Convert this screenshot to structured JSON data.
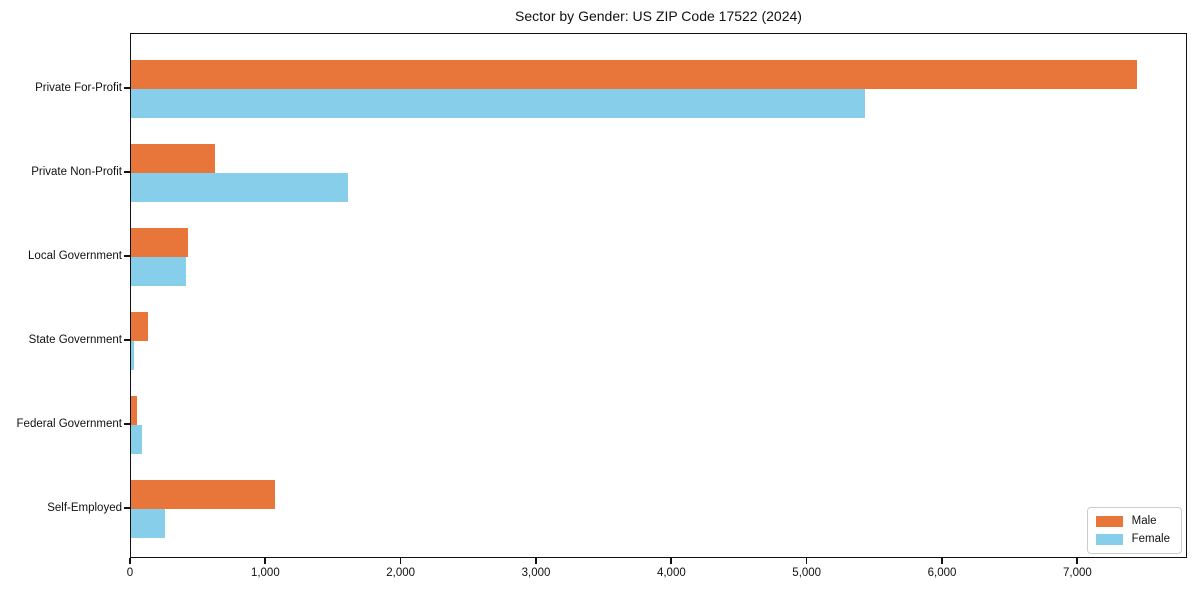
{
  "title": "Sector by Gender: US ZIP Code 17522 (2024)",
  "chart_data": {
    "type": "bar",
    "orientation": "horizontal",
    "title": "Sector by Gender: US ZIP Code 17522 (2024)",
    "categories": [
      "Private For-Profit",
      "Private Non-Profit",
      "Local Government",
      "State Government",
      "Federal Government",
      "Self-Employed"
    ],
    "series": [
      {
        "name": "Male",
        "color": "#e8763a",
        "values": [
          7435,
          620,
          420,
          125,
          45,
          1065
        ]
      },
      {
        "name": "Female",
        "color": "#87ceeb",
        "values": [
          5425,
          1605,
          405,
          20,
          80,
          250
        ]
      }
    ],
    "xlabel": "",
    "ylabel": "",
    "xlim": [
      0,
      7810
    ],
    "xticks": {
      "values": [
        0,
        1000,
        2000,
        3000,
        4000,
        5000,
        6000,
        7000
      ],
      "labels": [
        "0",
        "1,000",
        "2,000",
        "3,000",
        "4,000",
        "5,000",
        "6,000",
        "7,000"
      ]
    },
    "legend": {
      "position": "lower right",
      "entries": [
        "Male",
        "Female"
      ]
    },
    "grid": false,
    "spine_color": "#111111",
    "text_color": "#111111",
    "background": "#ffffff"
  }
}
